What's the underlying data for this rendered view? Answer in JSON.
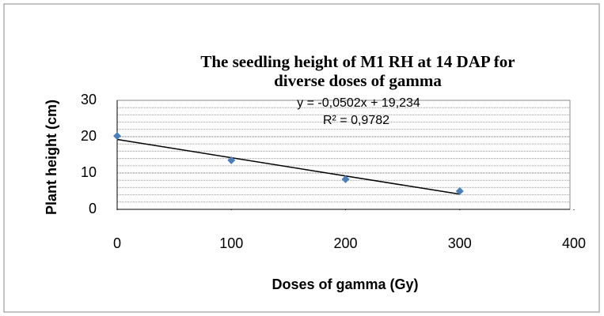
{
  "chart_data": {
    "type": "scatter",
    "title": [
      "The seedling height of M1 RH at 14 DAP for",
      "diverse doses of gamma"
    ],
    "x_label": "Doses of gamma (Gy)",
    "y_label": "Plant height (cm)",
    "x": [
      0,
      100,
      200,
      300
    ],
    "values": [
      20.2,
      13.5,
      8.3,
      5.0
    ],
    "color": "#4a7ebb",
    "trendline": {
      "slope": -0.0502,
      "intercept": 19.234,
      "color": "#000000",
      "equation": "y = -0,0502x + 19,234",
      "r_squared": 0.9782,
      "r_squared_label": "R² = 0,9782"
    },
    "xlim": [
      0,
      400
    ],
    "xticks": [
      0,
      100,
      200,
      300,
      400
    ],
    "ylim": [
      0,
      30
    ],
    "yticks": [
      0,
      10,
      20,
      30
    ],
    "y_minor_ticks": [
      2,
      4,
      6,
      8,
      12,
      14,
      16,
      18,
      22,
      24,
      26,
      28
    ],
    "grid": true
  }
}
